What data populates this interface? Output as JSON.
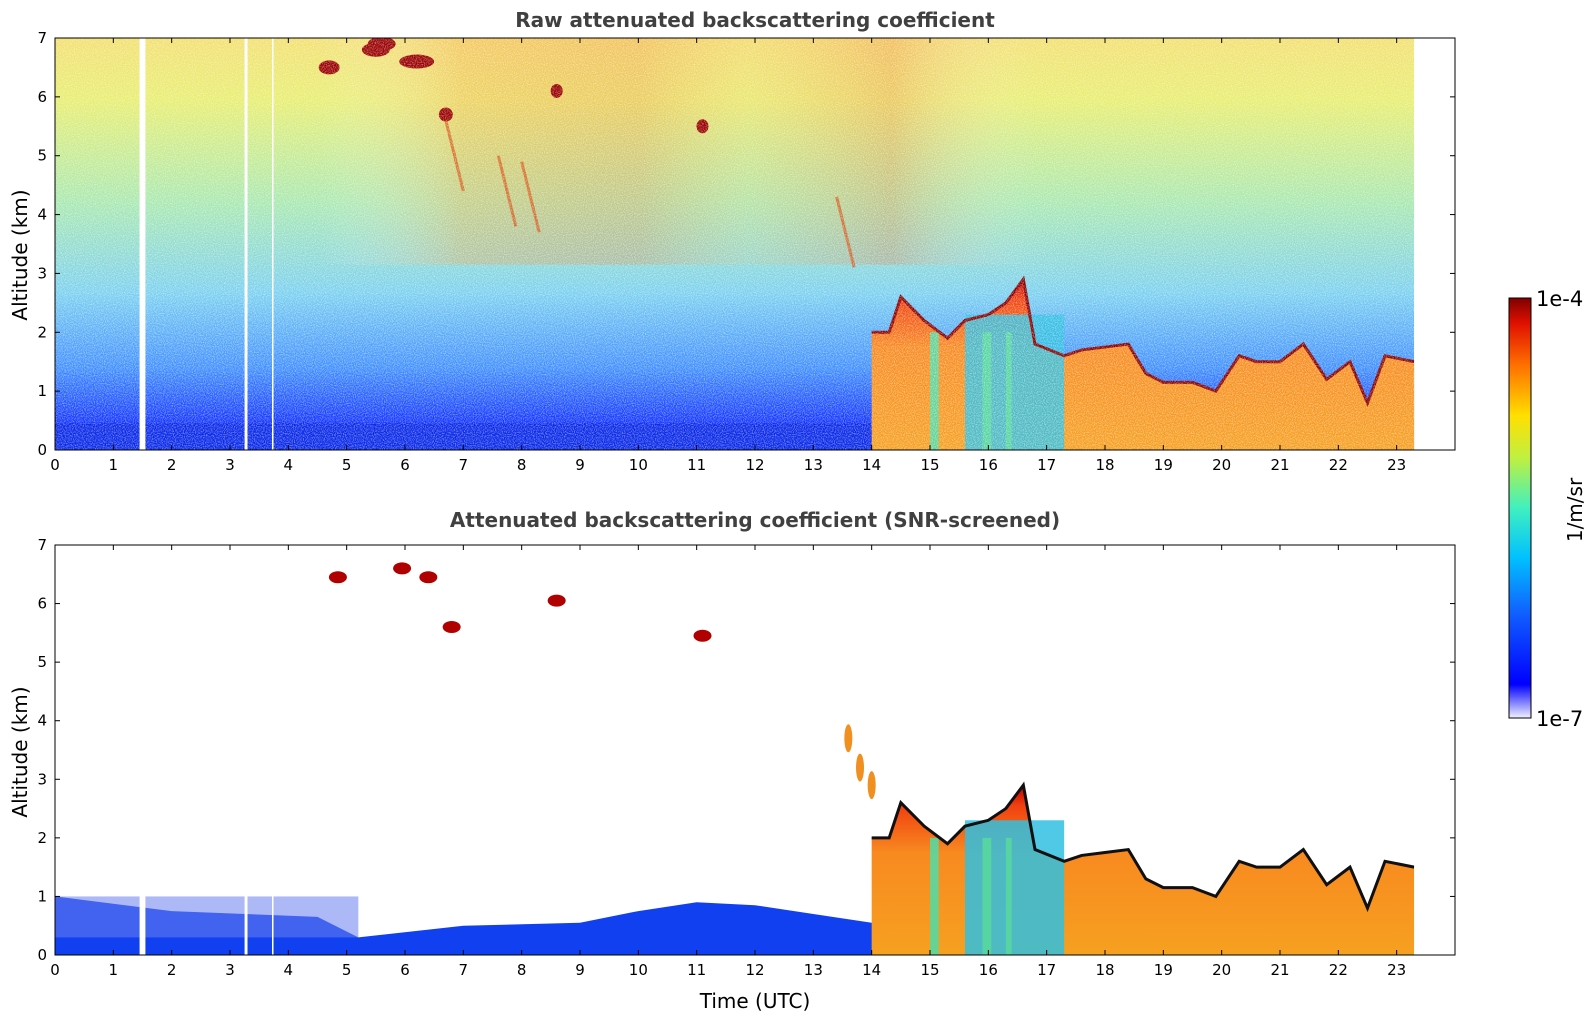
{
  "figure": {
    "colorbar": {
      "max_label": "1e-4",
      "min_label": "1e-7",
      "unit_label": "1/m/sr",
      "scale": "log",
      "colormap": "jet"
    }
  },
  "chart_data": [
    {
      "type": "heatmap",
      "title": "Raw attenuated backscattering coefficient",
      "xlabel": "",
      "ylabel": "Altitude (km)",
      "xlim": [
        0,
        24
      ],
      "ylim": [
        0,
        7
      ],
      "x_ticks": [
        "0",
        "1",
        "2",
        "3",
        "4",
        "5",
        "6",
        "7",
        "8",
        "9",
        "10",
        "11",
        "12",
        "13",
        "14",
        "15",
        "16",
        "17",
        "18",
        "19",
        "20",
        "21",
        "22",
        "23"
      ],
      "y_ticks": [
        "0",
        "1",
        "2",
        "3",
        "4",
        "5",
        "6",
        "7"
      ],
      "data_end_time": 23.3,
      "data_gaps": [
        [
          1.45,
          1.55
        ],
        [
          3.25,
          3.3
        ],
        [
          3.72,
          3.74
        ]
      ],
      "cloud_top_km": [
        [
          14.0,
          2.0
        ],
        [
          14.3,
          2.0
        ],
        [
          14.5,
          2.6
        ],
        [
          14.9,
          2.2
        ],
        [
          15.3,
          1.9
        ],
        [
          15.6,
          2.2
        ],
        [
          16.0,
          2.3
        ],
        [
          16.3,
          2.5
        ],
        [
          16.6,
          2.9
        ],
        [
          16.8,
          1.8
        ],
        [
          17.3,
          1.6
        ],
        [
          17.6,
          1.7
        ],
        [
          18.0,
          1.75
        ],
        [
          18.4,
          1.8
        ],
        [
          18.7,
          1.3
        ],
        [
          19.0,
          1.15
        ],
        [
          19.5,
          1.15
        ],
        [
          19.9,
          1.0
        ],
        [
          20.3,
          1.6
        ],
        [
          20.6,
          1.5
        ],
        [
          21.0,
          1.5
        ],
        [
          21.4,
          1.8
        ],
        [
          21.8,
          1.2
        ],
        [
          22.2,
          1.5
        ],
        [
          22.5,
          0.8
        ],
        [
          22.8,
          1.6
        ],
        [
          23.3,
          1.5
        ]
      ]
    },
    {
      "type": "heatmap",
      "title": "Attenuated backscattering coefficient (SNR-screened)",
      "xlabel": "Time (UTC)",
      "ylabel": "Altitude (km)",
      "xlim": [
        0,
        24
      ],
      "ylim": [
        0,
        7
      ],
      "x_ticks": [
        "0",
        "1",
        "2",
        "3",
        "4",
        "5",
        "6",
        "7",
        "8",
        "9",
        "10",
        "11",
        "12",
        "13",
        "14",
        "15",
        "16",
        "17",
        "18",
        "19",
        "20",
        "21",
        "22",
        "23"
      ],
      "y_ticks": [
        "0",
        "1",
        "2",
        "3",
        "4",
        "5",
        "6",
        "7"
      ],
      "data_end_time": 23.3,
      "data_gaps": [
        [
          1.45,
          1.55
        ],
        [
          3.25,
          3.3
        ],
        [
          3.72,
          3.74
        ]
      ],
      "boundary_layer_top_km": [
        [
          0,
          1.0
        ],
        [
          2.0,
          0.75
        ],
        [
          4.5,
          0.65
        ],
        [
          5.2,
          0.3
        ],
        [
          7.0,
          0.5
        ],
        [
          9.0,
          0.55
        ],
        [
          10.0,
          0.75
        ],
        [
          11.0,
          0.9
        ],
        [
          12.0,
          0.85
        ],
        [
          13.0,
          0.7
        ],
        [
          14.0,
          0.55
        ],
        [
          14.4,
          0.5
        ]
      ],
      "cloud_top_km": [
        [
          14.0,
          2.0
        ],
        [
          14.3,
          2.0
        ],
        [
          14.5,
          2.6
        ],
        [
          14.9,
          2.2
        ],
        [
          15.3,
          1.9
        ],
        [
          15.6,
          2.2
        ],
        [
          16.0,
          2.3
        ],
        [
          16.3,
          2.5
        ],
        [
          16.6,
          2.9
        ],
        [
          16.8,
          1.8
        ],
        [
          17.3,
          1.6
        ],
        [
          17.6,
          1.7
        ],
        [
          18.0,
          1.75
        ],
        [
          18.4,
          1.8
        ],
        [
          18.7,
          1.3
        ],
        [
          19.0,
          1.15
        ],
        [
          19.5,
          1.15
        ],
        [
          19.9,
          1.0
        ],
        [
          20.3,
          1.6
        ],
        [
          20.6,
          1.5
        ],
        [
          21.0,
          1.5
        ],
        [
          21.4,
          1.8
        ],
        [
          21.8,
          1.2
        ],
        [
          22.2,
          1.5
        ],
        [
          22.5,
          0.8
        ],
        [
          22.8,
          1.6
        ],
        [
          23.3,
          1.5
        ]
      ]
    }
  ]
}
